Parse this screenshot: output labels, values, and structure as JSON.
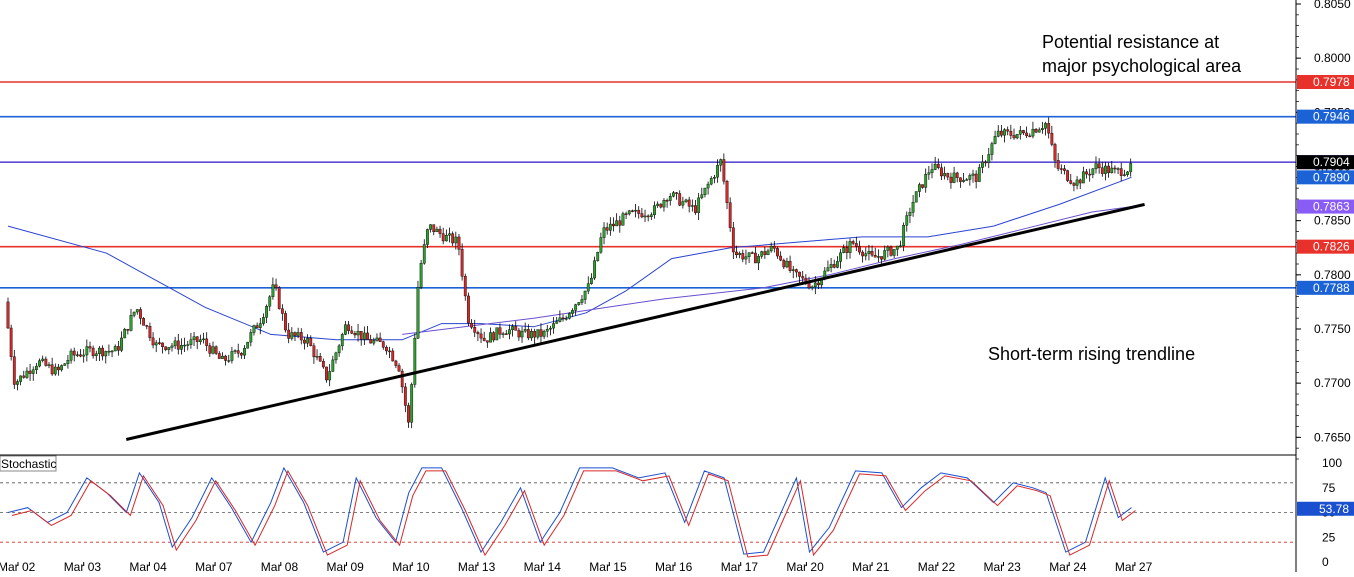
{
  "chart_data": {
    "type": "candlestick",
    "y_axis": {
      "range": [
        0.763,
        0.805
      ],
      "ticks": [
        "0.8050",
        "0.8000",
        "0.7950",
        "0.7900",
        "0.7850",
        "0.7800",
        "0.7750",
        "0.7700",
        "0.7650"
      ]
    },
    "x_axis": {
      "labels": [
        "Mar 02",
        "Mar 03",
        "Mar 04",
        "Mar 07",
        "Mar 08",
        "Mar 09",
        "Mar 10",
        "Mar 13",
        "Mar 14",
        "Mar 15",
        "Mar 16",
        "Mar 17",
        "Mar 20",
        "Mar 21",
        "Mar 22",
        "Mar 23",
        "Mar 24",
        "Mar 27"
      ]
    },
    "horizontal_levels": [
      {
        "value": 0.7978,
        "label": "0.7978",
        "color": "#e8312a"
      },
      {
        "value": 0.7946,
        "label": "0.7946",
        "color": "#1a62d6"
      },
      {
        "value": 0.7904,
        "label": "0.7904",
        "color": "#5b4bd6"
      },
      {
        "value": 0.7826,
        "label": "0.7826",
        "color": "#e8312a"
      },
      {
        "value": 0.7788,
        "label": "0.7788",
        "color": "#1a62d6"
      }
    ],
    "price_tags": [
      {
        "value": 0.789,
        "label": "0.7890",
        "color": "#1a62d6"
      },
      {
        "value": 0.7863,
        "label": "0.7863",
        "color": "#8a5cf6"
      }
    ],
    "current_price": {
      "value": 0.7904,
      "label": "0.7904"
    },
    "trendline": {
      "from": {
        "x_index": 1.8,
        "value": 0.7648
      },
      "to": {
        "x_index": 17.3,
        "value": 0.7865
      }
    },
    "annotations": [
      {
        "text": "Potential resistance at",
        "target": "resistance"
      },
      {
        "text": "major psychological area",
        "target": "resistance"
      },
      {
        "text": "Short-term rising trendline",
        "target": "trendline"
      }
    ],
    "price_path": [
      [
        0,
        0.7775
      ],
      [
        0.15,
        0.77
      ],
      [
        0.5,
        0.772
      ],
      [
        0.8,
        0.771
      ],
      [
        1.0,
        0.7725
      ],
      [
        1.3,
        0.773
      ],
      [
        1.7,
        0.773
      ],
      [
        2.0,
        0.777
      ],
      [
        2.3,
        0.7735
      ],
      [
        2.7,
        0.7735
      ],
      [
        3.0,
        0.774
      ],
      [
        3.3,
        0.772
      ],
      [
        3.6,
        0.773
      ],
      [
        3.9,
        0.776
      ],
      [
        4.1,
        0.779
      ],
      [
        4.3,
        0.7745
      ],
      [
        4.6,
        0.774
      ],
      [
        4.9,
        0.7705
      ],
      [
        5.2,
        0.7755
      ],
      [
        5.5,
        0.774
      ],
      [
        5.8,
        0.7735
      ],
      [
        6.0,
        0.7715
      ],
      [
        6.15,
        0.766
      ],
      [
        6.3,
        0.78
      ],
      [
        6.45,
        0.7845
      ],
      [
        6.7,
        0.7835
      ],
      [
        6.9,
        0.783
      ],
      [
        7.05,
        0.776
      ],
      [
        7.3,
        0.774
      ],
      [
        7.6,
        0.775
      ],
      [
        7.9,
        0.7745
      ],
      [
        8.2,
        0.7745
      ],
      [
        8.5,
        0.776
      ],
      [
        8.9,
        0.779
      ],
      [
        9.1,
        0.784
      ],
      [
        9.5,
        0.7855
      ],
      [
        9.9,
        0.786
      ],
      [
        10.1,
        0.7875
      ],
      [
        10.5,
        0.786
      ],
      [
        10.9,
        0.7905
      ],
      [
        11.1,
        0.782
      ],
      [
        11.4,
        0.7815
      ],
      [
        11.7,
        0.7825
      ],
      [
        12.0,
        0.78
      ],
      [
        12.3,
        0.779
      ],
      [
        12.6,
        0.781
      ],
      [
        12.9,
        0.783
      ],
      [
        13.2,
        0.7815
      ],
      [
        13.6,
        0.7825
      ],
      [
        13.8,
        0.7865
      ],
      [
        14.1,
        0.79
      ],
      [
        14.4,
        0.789
      ],
      [
        14.8,
        0.789
      ],
      [
        15.1,
        0.793
      ],
      [
        15.5,
        0.793
      ],
      [
        15.85,
        0.794
      ],
      [
        16.0,
        0.79
      ],
      [
        16.3,
        0.7885
      ],
      [
        16.6,
        0.79
      ],
      [
        16.9,
        0.7895
      ],
      [
        17.1,
        0.7898
      ]
    ],
    "moving_averages": [
      {
        "color": "#2a44d0",
        "path": [
          [
            0,
            0.7845
          ],
          [
            1.5,
            0.782
          ],
          [
            3.0,
            0.777
          ],
          [
            4.0,
            0.7745
          ],
          [
            5.0,
            0.774
          ],
          [
            6.0,
            0.774
          ],
          [
            6.6,
            0.7755
          ],
          [
            7.2,
            0.7755
          ],
          [
            8.0,
            0.7752
          ],
          [
            8.8,
            0.7765
          ],
          [
            9.4,
            0.7785
          ],
          [
            10.1,
            0.7815
          ],
          [
            11.0,
            0.7825
          ],
          [
            12.0,
            0.783
          ],
          [
            13.0,
            0.7835
          ],
          [
            14.0,
            0.7835
          ],
          [
            15.0,
            0.7845
          ],
          [
            16.0,
            0.7865
          ],
          [
            17.1,
            0.789
          ]
        ]
      },
      {
        "color": "#6a4fd0",
        "path": [
          [
            6.0,
            0.7745
          ],
          [
            8.0,
            0.776
          ],
          [
            10.0,
            0.7778
          ],
          [
            11.5,
            0.7788
          ],
          [
            12.5,
            0.78
          ],
          [
            13.5,
            0.7815
          ],
          [
            14.5,
            0.7828
          ],
          [
            15.5,
            0.7843
          ],
          [
            16.5,
            0.7858
          ],
          [
            17.1,
            0.7863
          ]
        ]
      }
    ],
    "stochastic": {
      "name": "Stochastic",
      "range": [
        0,
        100
      ],
      "ticks": [
        "100",
        "75",
        "50",
        "25",
        "0"
      ],
      "levels": [
        80,
        50,
        20
      ],
      "value_label": "53.78",
      "k_line": [
        [
          0,
          50
        ],
        [
          0.3,
          55
        ],
        [
          0.6,
          40
        ],
        [
          0.9,
          50
        ],
        [
          1.2,
          85
        ],
        [
          1.5,
          70
        ],
        [
          1.8,
          50
        ],
        [
          2.0,
          90
        ],
        [
          2.3,
          60
        ],
        [
          2.5,
          15
        ],
        [
          2.8,
          45
        ],
        [
          3.1,
          85
        ],
        [
          3.4,
          55
        ],
        [
          3.7,
          20
        ],
        [
          4.0,
          60
        ],
        [
          4.2,
          95
        ],
        [
          4.5,
          60
        ],
        [
          4.8,
          10
        ],
        [
          5.1,
          20
        ],
        [
          5.3,
          85
        ],
        [
          5.6,
          45
        ],
        [
          5.9,
          20
        ],
        [
          6.1,
          70
        ],
        [
          6.3,
          95
        ],
        [
          6.6,
          95
        ],
        [
          6.9,
          55
        ],
        [
          7.2,
          10
        ],
        [
          7.5,
          40
        ],
        [
          7.8,
          75
        ],
        [
          8.1,
          20
        ],
        [
          8.4,
          50
        ],
        [
          8.7,
          95
        ],
        [
          9.2,
          95
        ],
        [
          9.6,
          85
        ],
        [
          10.0,
          90
        ],
        [
          10.3,
          40
        ],
        [
          10.6,
          92
        ],
        [
          10.9,
          85
        ],
        [
          11.2,
          8
        ],
        [
          11.5,
          10
        ],
        [
          11.8,
          55
        ],
        [
          12.0,
          85
        ],
        [
          12.2,
          10
        ],
        [
          12.5,
          35
        ],
        [
          12.9,
          92
        ],
        [
          13.3,
          90
        ],
        [
          13.6,
          55
        ],
        [
          13.9,
          75
        ],
        [
          14.2,
          90
        ],
        [
          14.6,
          85
        ],
        [
          15.0,
          60
        ],
        [
          15.3,
          80
        ],
        [
          15.6,
          75
        ],
        [
          15.8,
          70
        ],
        [
          16.1,
          10
        ],
        [
          16.4,
          20
        ],
        [
          16.7,
          85
        ],
        [
          16.9,
          45
        ],
        [
          17.1,
          55
        ]
      ]
    }
  }
}
